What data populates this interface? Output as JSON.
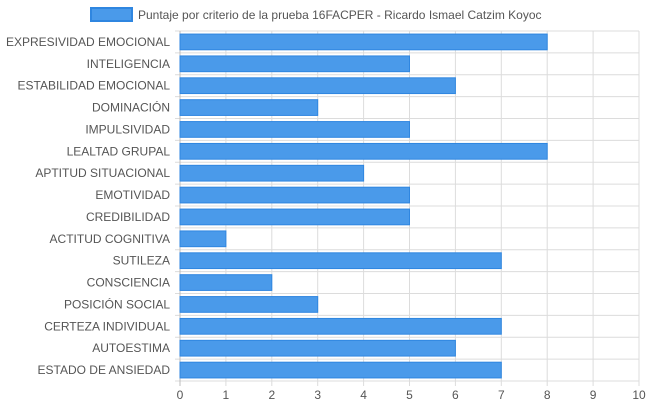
{
  "chart_data": {
    "type": "bar",
    "orientation": "horizontal",
    "categories": [
      "EXPRESIVIDAD EMOCIONAL",
      "INTELIGENCIA",
      "ESTABILIDAD EMOCIONAL",
      "DOMINACIÓN",
      "IMPULSIVIDAD",
      "LEALTAD GRUPAL",
      "APTITUD SITUACIONAL",
      "EMOTIVIDAD",
      "CREDIBILIDAD",
      "ACTITUD COGNITIVA",
      "SUTILEZA",
      "CONSCIENCIA",
      "POSICIÓN SOCIAL",
      "CERTEZA INDIVIDUAL",
      "AUTOESTIMA",
      "ESTADO DE ANSIEDAD"
    ],
    "series": [
      {
        "name": "Puntaje por criterio de la prueba 16FACPER - Ricardo Ismael Catzim Koyoc",
        "values": [
          8,
          5,
          6,
          3,
          5,
          8,
          4,
          5,
          5,
          1,
          7,
          2,
          3,
          7,
          6,
          7
        ]
      }
    ],
    "xlim": [
      0,
      10
    ],
    "x_ticks": [
      "0",
      "1",
      "2",
      "3",
      "4",
      "5",
      "6",
      "7",
      "8",
      "9",
      "10"
    ],
    "grid": true,
    "legend_position": "top",
    "colors": {
      "bar_fill": "#4a9aea",
      "bar_stroke": "#2f86e0",
      "grid": "#dcdcdc",
      "axis_text": "#555555"
    }
  }
}
